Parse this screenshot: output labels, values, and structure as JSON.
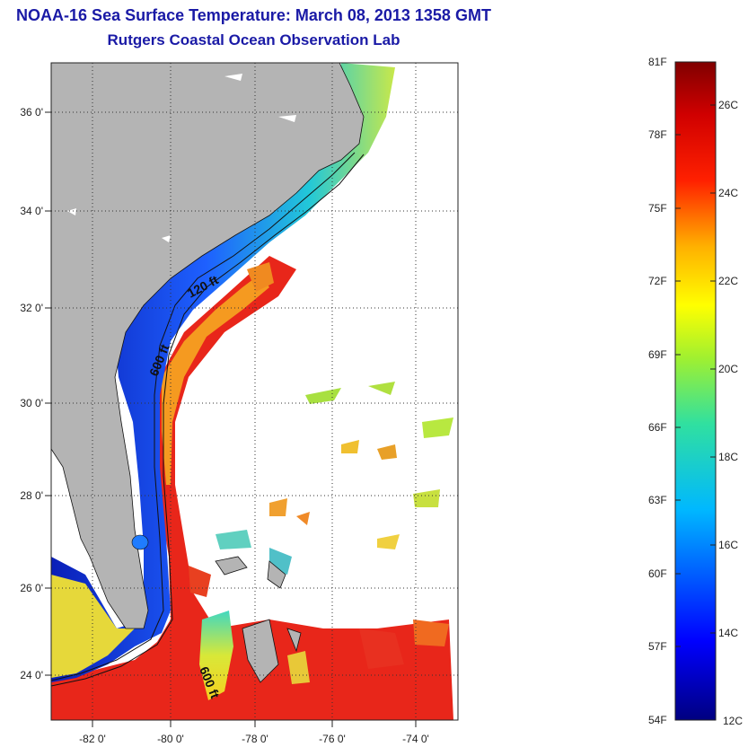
{
  "title": "NOAA-16 Sea Surface Temperature:  March 08, 2013 1358 GMT",
  "subtitle": "Rutgers Coastal Ocean Observation Lab",
  "map": {
    "lat_labels": [
      "36 0'",
      "34 0'",
      "32 0'",
      "30 0'",
      "28 0'",
      "26 0'",
      "24 0'"
    ],
    "lon_labels": [
      "-82 0'",
      "-80 0'",
      "-78 0'",
      "-76 0'",
      "-74 0'"
    ],
    "contour_labels": [
      "120 ft",
      "600 ft",
      "600 ft"
    ],
    "colors": {
      "land": "#b4b4b4",
      "cold": "#0a1fb8",
      "warm": "#e8261a"
    }
  },
  "colorbar": {
    "fahrenheit": [
      "81F",
      "78F",
      "75F",
      "72F",
      "69F",
      "66F",
      "63F",
      "60F",
      "57F",
      "54F"
    ],
    "celsius": [
      "26C",
      "24C",
      "22C",
      "20C",
      "18C",
      "16C",
      "14C",
      "12C"
    ]
  }
}
